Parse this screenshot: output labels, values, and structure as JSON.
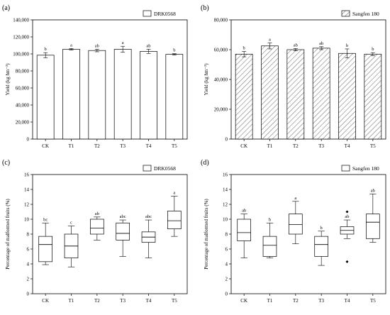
{
  "chart_data": [
    {
      "id": "a",
      "panel_label": "(a)",
      "type": "bar",
      "pattern": "plain",
      "legend": "DRK0568",
      "legend_position": "top-right",
      "ylabel": "Yield (kg hm⁻²)",
      "ylim": [
        0,
        140000
      ],
      "yticks": [
        0,
        20000,
        40000,
        60000,
        80000,
        100000,
        120000,
        140000
      ],
      "ytick_labels": [
        "0",
        "20,000",
        "40,000",
        "60,000",
        "80,000",
        "100,000",
        "120,000",
        "140,000"
      ],
      "categories": [
        "CK",
        "T1",
        "T2",
        "T3",
        "T4",
        "T5"
      ],
      "values": [
        98500,
        105500,
        104000,
        105500,
        103000,
        99500
      ],
      "errors": [
        3000,
        800,
        1500,
        3500,
        2500,
        800
      ],
      "significance": [
        "b",
        "a",
        "ab",
        "a",
        "ab",
        "b"
      ]
    },
    {
      "id": "b",
      "panel_label": "(b)",
      "type": "bar",
      "pattern": "hatched",
      "legend": "Sangfen 180",
      "legend_position": "top-right",
      "ylabel": "Yield (kg hm⁻²)",
      "ylim": [
        0,
        80000
      ],
      "yticks": [
        0,
        20000,
        40000,
        60000,
        80000
      ],
      "ytick_labels": [
        "0",
        "20,000",
        "40,000",
        "60,000",
        "80,000"
      ],
      "categories": [
        "CK",
        "T1",
        "T2",
        "T3",
        "T4",
        "T5"
      ],
      "values": [
        57000,
        62500,
        60000,
        61000,
        57500,
        57000
      ],
      "errors": [
        1800,
        2000,
        800,
        1000,
        3000,
        1000
      ],
      "significance": [
        "b",
        "a",
        "ab",
        "ab",
        "b",
        "b"
      ]
    },
    {
      "id": "c",
      "panel_label": "(c)",
      "type": "box",
      "legend": "DRK0568",
      "legend_position": "top-right",
      "ylabel": "Percentage of malformed fruits (%)",
      "ylim": [
        0,
        16
      ],
      "yticks": [
        0,
        2,
        4,
        6,
        8,
        10,
        12,
        14,
        16
      ],
      "ytick_labels": [
        "0",
        "2",
        "4",
        "6",
        "8",
        "10",
        "12",
        "14",
        "16"
      ],
      "categories": [
        "CK",
        "T1",
        "T2",
        "T3",
        "T4",
        "T5"
      ],
      "boxes": [
        {
          "min": 3.9,
          "q1": 4.3,
          "median": 6.6,
          "q3": 7.7,
          "max": 9.5,
          "outliers": []
        },
        {
          "min": 3.6,
          "q1": 4.8,
          "median": 6.4,
          "q3": 8.0,
          "max": 9.1,
          "outliers": []
        },
        {
          "min": 7.2,
          "q1": 8.0,
          "median": 8.8,
          "q3": 10.0,
          "max": 10.3,
          "outliers": []
        },
        {
          "min": 5.0,
          "q1": 7.2,
          "median": 8.1,
          "q3": 9.5,
          "max": 9.9,
          "outliers": []
        },
        {
          "min": 4.8,
          "q1": 6.9,
          "median": 7.6,
          "q3": 8.3,
          "max": 9.9,
          "outliers": []
        },
        {
          "min": 7.7,
          "q1": 8.7,
          "median": 9.8,
          "q3": 11.1,
          "max": 13.1,
          "outliers": []
        }
      ],
      "significance": [
        "bc",
        "c",
        "ab",
        "abc",
        "abc",
        "a"
      ]
    },
    {
      "id": "d",
      "panel_label": "(d)",
      "type": "box",
      "legend": "Sangfen 180",
      "legend_position": "top-right",
      "ylabel": "Percentage of malformed fruits (%)",
      "ylim": [
        0,
        16
      ],
      "yticks": [
        0,
        2,
        4,
        6,
        8,
        10,
        12,
        14,
        16
      ],
      "ytick_labels": [
        "0",
        "2",
        "4",
        "6",
        "8",
        "10",
        "12",
        "14",
        "16"
      ],
      "categories": [
        "CK",
        "T1",
        "T2",
        "T3",
        "T4",
        "T5"
      ],
      "boxes": [
        {
          "min": 4.8,
          "q1": 7.1,
          "median": 8.2,
          "q3": 10.0,
          "max": 10.7,
          "outliers": []
        },
        {
          "min": 4.8,
          "q1": 5.0,
          "median": 6.5,
          "q3": 7.7,
          "max": 9.5,
          "outliers": []
        },
        {
          "min": 6.7,
          "q1": 8.0,
          "median": 9.3,
          "q3": 10.7,
          "max": 12.4,
          "outliers": []
        },
        {
          "min": 3.8,
          "q1": 5.0,
          "median": 6.6,
          "q3": 7.7,
          "max": 8.4,
          "outliers": []
        },
        {
          "min": 7.4,
          "q1": 8.0,
          "median": 8.5,
          "q3": 9.0,
          "max": 9.9,
          "outliers": [
            11.0,
            4.3
          ]
        },
        {
          "min": 6.9,
          "q1": 7.4,
          "median": 9.6,
          "q3": 10.7,
          "max": 13.4,
          "outliers": []
        }
      ],
      "significance": [
        "ab",
        "b",
        "a",
        "b",
        "ab",
        "ab"
      ]
    }
  ]
}
